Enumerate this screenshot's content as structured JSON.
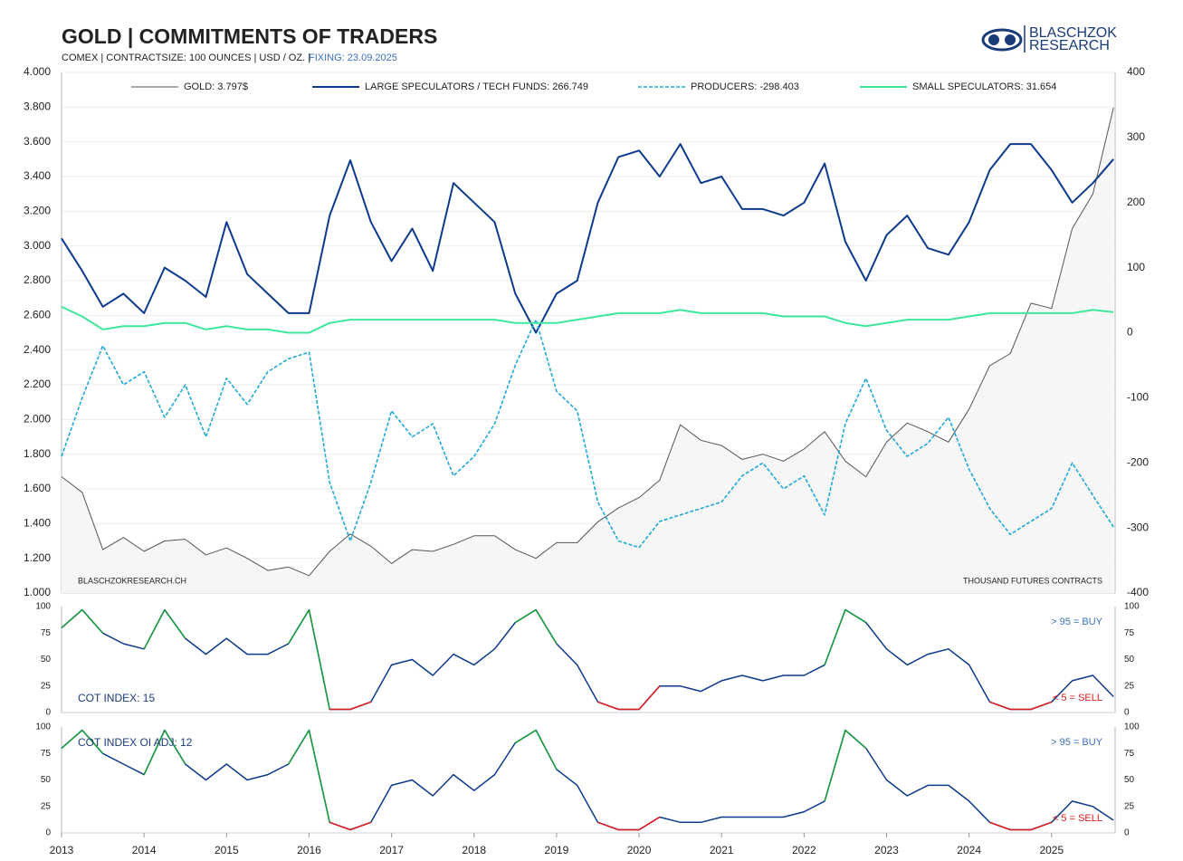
{
  "logo": {
    "line1": "BLASCHZOK",
    "line2": "RESEARCH"
  },
  "chart_data": [
    {
      "type": "line",
      "title": "GOLD | COMMITMENTS OF TRADERS",
      "subtitle": "COMEX | CONTRACTSIZE: 100 OUNCES | USD / OZ. |",
      "fixing": "FIXING: 23.09.2025",
      "annotations": [
        "BLASCHZOKRESEARCH.CH",
        "THOUSAND  FUTURES CONTRACTS"
      ],
      "legend": "top",
      "grid": true,
      "x": [
        2013,
        2013.25,
        2013.5,
        2013.75,
        2014,
        2014.25,
        2014.5,
        2014.75,
        2015,
        2015.25,
        2015.5,
        2015.75,
        2016,
        2016.25,
        2016.5,
        2016.75,
        2017,
        2017.25,
        2017.5,
        2017.75,
        2018,
        2018.25,
        2018.5,
        2018.75,
        2019,
        2019.25,
        2019.5,
        2019.75,
        2020,
        2020.25,
        2020.5,
        2020.75,
        2021,
        2021.25,
        2021.5,
        2021.75,
        2022,
        2022.25,
        2022.5,
        2022.75,
        2023,
        2023.25,
        2023.5,
        2023.75,
        2024,
        2024.25,
        2024.5,
        2024.75,
        2025,
        2025.25,
        2025.5,
        2025.75
      ],
      "xlim": [
        2013,
        2025.77
      ],
      "ylim": [
        1,
        4
      ],
      "yticks": [
        {
          "value": 1,
          "label": "1.000"
        },
        {
          "value": 1.2,
          "label": "1.200"
        },
        {
          "value": 1.4,
          "label": "1.400"
        },
        {
          "value": 1.6,
          "label": "1.600"
        },
        {
          "value": 1.8,
          "label": "1.800"
        },
        {
          "value": 2,
          "label": "2.000"
        },
        {
          "value": 2.2,
          "label": "2.200"
        },
        {
          "value": 2.4,
          "label": "2.400"
        },
        {
          "value": 2.6,
          "label": "2.600"
        },
        {
          "value": 2.8,
          "label": "2.800"
        },
        {
          "value": 3,
          "label": "3.000"
        },
        {
          "value": 3.2,
          "label": "3.200"
        },
        {
          "value": 3.4,
          "label": "3.400"
        },
        {
          "value": 3.6,
          "label": "3.600"
        },
        {
          "value": 3.8,
          "label": "3.800"
        },
        {
          "value": 4,
          "label": "4.000"
        }
      ],
      "y2lim": [
        -400,
        400
      ],
      "y2ticks": [
        -400,
        -300,
        -200,
        -100,
        0,
        100,
        200,
        300,
        400
      ],
      "series": [
        {
          "name": "GOLD: 3.797$",
          "color": "#555555",
          "fill": "#f6f6f6",
          "width": 1,
          "values": [
            1.67,
            1.58,
            1.25,
            1.32,
            1.24,
            1.3,
            1.31,
            1.22,
            1.26,
            1.2,
            1.13,
            1.15,
            1.1,
            1.24,
            1.34,
            1.27,
            1.17,
            1.25,
            1.24,
            1.28,
            1.33,
            1.33,
            1.25,
            1.2,
            1.29,
            1.29,
            1.41,
            1.49,
            1.55,
            1.65,
            1.97,
            1.88,
            1.85,
            1.77,
            1.8,
            1.76,
            1.83,
            1.93,
            1.76,
            1.67,
            1.87,
            1.98,
            1.93,
            1.87,
            2.06,
            2.31,
            2.38,
            2.67,
            2.64,
            3.1,
            3.3,
            3.797
          ]
        },
        {
          "name": "LARGE SPECULATORS / TECH FUNDS: 266.749",
          "color": "#0d3a8c",
          "axis": "y2",
          "width": 2,
          "values": [
            145,
            95,
            40,
            60,
            30,
            100,
            80,
            55,
            170,
            90,
            60,
            30,
            30,
            180,
            265,
            170,
            110,
            160,
            95,
            230,
            200,
            170,
            60,
            0,
            60,
            80,
            200,
            270,
            280,
            240,
            290,
            230,
            240,
            190,
            190,
            180,
            200,
            260,
            140,
            80,
            150,
            180,
            130,
            120,
            170,
            250,
            290,
            290,
            250,
            200,
            230,
            266.749
          ]
        },
        {
          "name": "PRODUCERS: -298.403",
          "color": "#1fa8d8",
          "axis": "y2",
          "width": 1.6,
          "dash": true,
          "values": [
            -190,
            -100,
            -20,
            -80,
            -60,
            -130,
            -80,
            -160,
            -70,
            -110,
            -60,
            -40,
            -30,
            -230,
            -320,
            -230,
            -120,
            -160,
            -140,
            -220,
            -190,
            -140,
            -50,
            20,
            -90,
            -120,
            -260,
            -320,
            -330,
            -290,
            -280,
            -270,
            -260,
            -220,
            -200,
            -240,
            -220,
            -280,
            -140,
            -70,
            -150,
            -190,
            -170,
            -130,
            -210,
            -270,
            -310,
            -290,
            -270,
            -200,
            -250,
            -298.403
          ]
        },
        {
          "name": "SMALL SPECULATORS: 31.654",
          "color": "#3de89a",
          "axis": "y2",
          "width": 2,
          "values": [
            40,
            25,
            5,
            10,
            10,
            15,
            15,
            5,
            10,
            5,
            5,
            0,
            0,
            15,
            20,
            20,
            20,
            20,
            20,
            20,
            20,
            20,
            15,
            15,
            15,
            20,
            25,
            30,
            30,
            30,
            35,
            30,
            30,
            30,
            30,
            25,
            25,
            25,
            15,
            10,
            15,
            20,
            20,
            20,
            25,
            30,
            30,
            30,
            30,
            30,
            35,
            31.654
          ]
        }
      ]
    },
    {
      "type": "line",
      "annotations": [
        "> 95 = BUY",
        "< 5 = SELL"
      ],
      "thresholds": {
        "buy": 95,
        "sell": 5,
        "buy_color": "#1a9e3a",
        "sell_color": "#e01b1b"
      },
      "x": [
        2013,
        2013.25,
        2013.5,
        2013.75,
        2014,
        2014.25,
        2014.5,
        2014.75,
        2015,
        2015.25,
        2015.5,
        2015.75,
        2016,
        2016.25,
        2016.5,
        2016.75,
        2017,
        2017.25,
        2017.5,
        2017.75,
        2018,
        2018.25,
        2018.5,
        2018.75,
        2019,
        2019.25,
        2019.5,
        2019.75,
        2020,
        2020.25,
        2020.5,
        2020.75,
        2021,
        2021.25,
        2021.5,
        2021.75,
        2022,
        2022.25,
        2022.5,
        2022.75,
        2023,
        2023.25,
        2023.5,
        2023.75,
        2024,
        2024.25,
        2024.5,
        2024.75,
        2025,
        2025.25,
        2025.5,
        2025.75
      ],
      "xlim": [
        2013,
        2025.77
      ],
      "ylim": [
        0,
        100
      ],
      "yticks": [
        0,
        25,
        50,
        75,
        100
      ],
      "series": [
        {
          "name": "COT INDEX: 15",
          "color": "#0d3a8c",
          "values": [
            80,
            97,
            75,
            65,
            60,
            97,
            70,
            55,
            70,
            55,
            55,
            65,
            97,
            3,
            3,
            10,
            45,
            50,
            35,
            55,
            45,
            60,
            85,
            97,
            65,
            45,
            10,
            3,
            3,
            25,
            25,
            20,
            30,
            35,
            30,
            35,
            35,
            45,
            97,
            85,
            60,
            45,
            55,
            60,
            45,
            10,
            3,
            3,
            10,
            30,
            35,
            15
          ]
        }
      ]
    },
    {
      "type": "line",
      "annotations": [
        "> 95 = BUY",
        "< 5 = SELL"
      ],
      "thresholds": {
        "buy": 95,
        "sell": 5,
        "buy_color": "#1a9e3a",
        "sell_color": "#e01b1b"
      },
      "x": [
        2013,
        2013.25,
        2013.5,
        2013.75,
        2014,
        2014.25,
        2014.5,
        2014.75,
        2015,
        2015.25,
        2015.5,
        2015.75,
        2016,
        2016.25,
        2016.5,
        2016.75,
        2017,
        2017.25,
        2017.5,
        2017.75,
        2018,
        2018.25,
        2018.5,
        2018.75,
        2019,
        2019.25,
        2019.5,
        2019.75,
        2020,
        2020.25,
        2020.5,
        2020.75,
        2021,
        2021.25,
        2021.5,
        2021.75,
        2022,
        2022.25,
        2022.5,
        2022.75,
        2023,
        2023.25,
        2023.5,
        2023.75,
        2024,
        2024.25,
        2024.5,
        2024.75,
        2025,
        2025.25,
        2025.5,
        2025.75
      ],
      "xlim": [
        2013,
        2025.77
      ],
      "ylim": [
        0,
        100
      ],
      "yticks": [
        0,
        25,
        50,
        75,
        100
      ],
      "xticks": [
        2013,
        2014,
        2015,
        2016,
        2017,
        2018,
        2019,
        2020,
        2021,
        2022,
        2023,
        2024,
        2025
      ],
      "series": [
        {
          "name": "COT INDEX OI ADJ: 12",
          "color": "#0d3a8c",
          "values": [
            80,
            97,
            75,
            65,
            55,
            97,
            65,
            50,
            65,
            50,
            55,
            65,
            97,
            10,
            3,
            10,
            45,
            50,
            35,
            55,
            40,
            55,
            85,
            97,
            60,
            45,
            10,
            3,
            3,
            15,
            10,
            10,
            15,
            15,
            15,
            15,
            20,
            30,
            97,
            80,
            50,
            35,
            45,
            45,
            30,
            10,
            3,
            3,
            10,
            30,
            25,
            12
          ]
        }
      ]
    }
  ]
}
